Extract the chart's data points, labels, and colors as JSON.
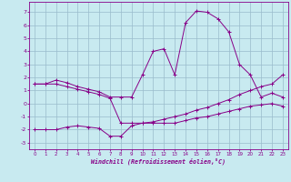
{
  "x": [
    0,
    1,
    2,
    3,
    4,
    5,
    6,
    7,
    8,
    9,
    10,
    11,
    12,
    13,
    14,
    15,
    16,
    17,
    18,
    19,
    20,
    21,
    22,
    23
  ],
  "line1": [
    1.5,
    1.5,
    1.8,
    1.6,
    1.3,
    1.1,
    0.9,
    0.5,
    0.5,
    0.5,
    2.2,
    4.0,
    4.2,
    2.2,
    6.2,
    7.1,
    7.0,
    6.5,
    5.5,
    3.0,
    2.2,
    0.5,
    0.8,
    0.5
  ],
  "line2": [
    1.5,
    1.5,
    1.5,
    1.3,
    1.1,
    0.9,
    0.7,
    0.4,
    -1.5,
    -1.5,
    -1.5,
    -1.5,
    -1.5,
    -1.5,
    -1.3,
    -1.1,
    -1.0,
    -0.8,
    -0.6,
    -0.4,
    -0.2,
    -0.1,
    0.0,
    -0.2
  ],
  "line3": [
    -2.0,
    -2.0,
    -2.0,
    -1.8,
    -1.7,
    -1.8,
    -1.9,
    -2.5,
    -2.5,
    -1.7,
    -1.5,
    -1.4,
    -1.2,
    -1.0,
    -0.8,
    -0.5,
    -0.3,
    0.0,
    0.3,
    0.7,
    1.0,
    1.3,
    1.5,
    2.2
  ],
  "color": "#880088",
  "bg_color": "#c8eaf0",
  "grid_color": "#99bbcc",
  "xlabel": "Windchill (Refroidissement éolien,°C)",
  "ylim": [
    -3.5,
    7.8
  ],
  "xlim": [
    -0.5,
    23.5
  ],
  "yticks": [
    -3,
    -2,
    -1,
    0,
    1,
    2,
    3,
    4,
    5,
    6,
    7
  ],
  "xticks": [
    0,
    1,
    2,
    3,
    4,
    5,
    6,
    7,
    8,
    9,
    10,
    11,
    12,
    13,
    14,
    15,
    16,
    17,
    18,
    19,
    20,
    21,
    22,
    23
  ]
}
